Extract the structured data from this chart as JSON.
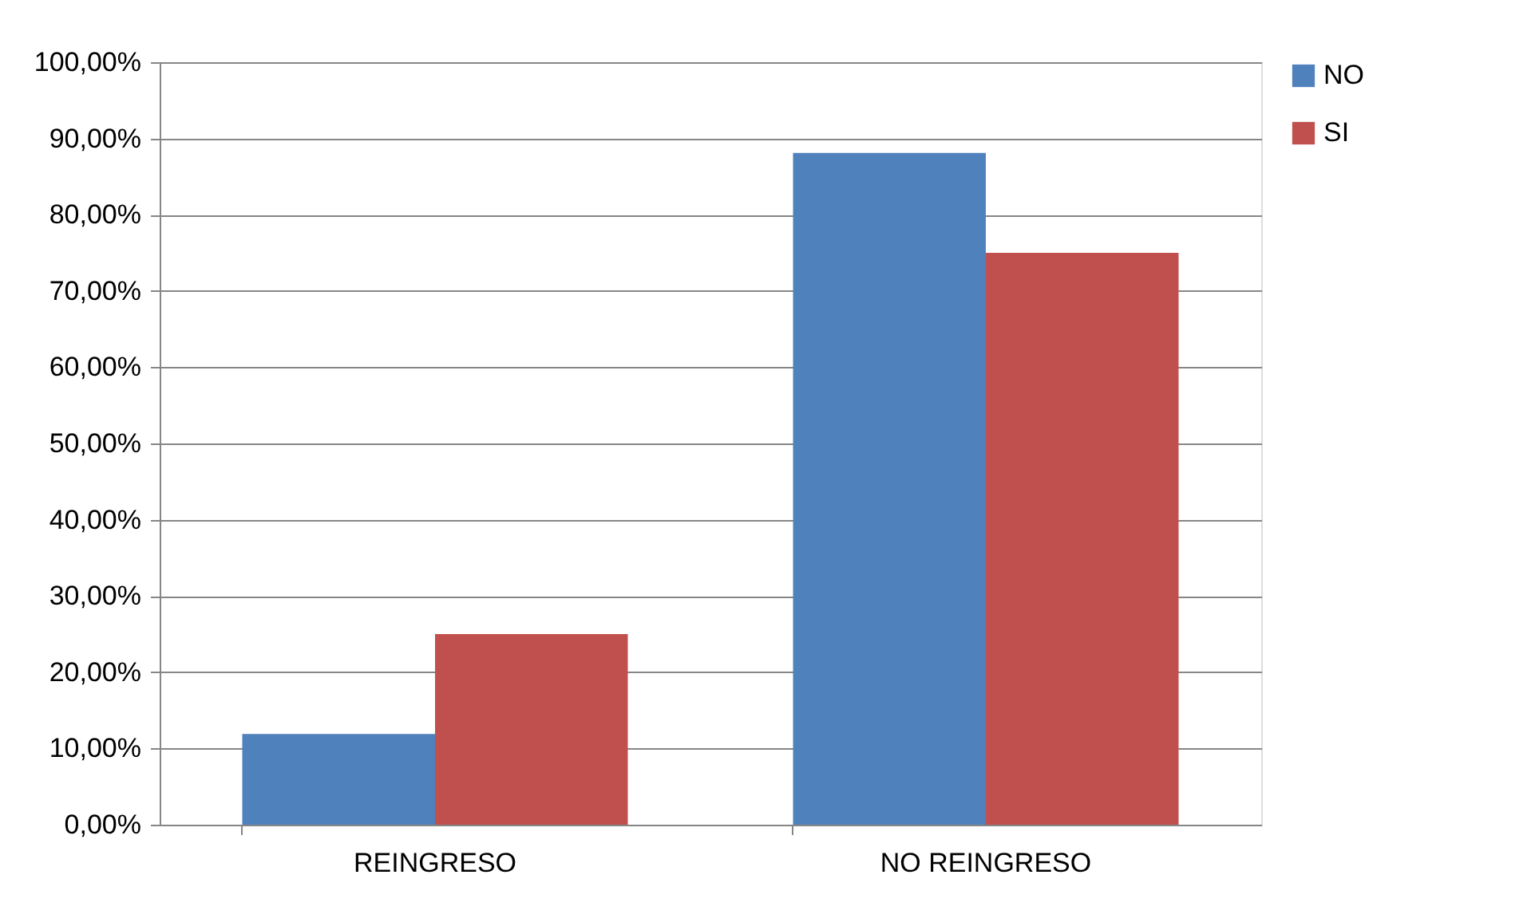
{
  "chart_data": {
    "type": "bar",
    "categories": [
      "REINGRESO",
      "NO REINGRESO"
    ],
    "series": [
      {
        "name": "NO",
        "color": "#4f81bd",
        "values": [
          11.9,
          88.1
        ]
      },
      {
        "name": "SI",
        "color": "#c0504d",
        "values": [
          25,
          75
        ]
      }
    ],
    "ylim": [
      0,
      100
    ],
    "yticks": [
      {
        "value": 0,
        "label": "0,00%"
      },
      {
        "value": 10,
        "label": "10,00%"
      },
      {
        "value": 20,
        "label": "20,00%"
      },
      {
        "value": 30,
        "label": "30,00%"
      },
      {
        "value": 40,
        "label": "40,00%"
      },
      {
        "value": 50,
        "label": "50,00%"
      },
      {
        "value": 60,
        "label": "60,00%"
      },
      {
        "value": 70,
        "label": "70,00%"
      },
      {
        "value": 80,
        "label": "80,00%"
      },
      {
        "value": 90,
        "label": "90,00%"
      },
      {
        "value": 100,
        "label": "100,00%"
      }
    ],
    "grid": "y",
    "legend": "right"
  }
}
